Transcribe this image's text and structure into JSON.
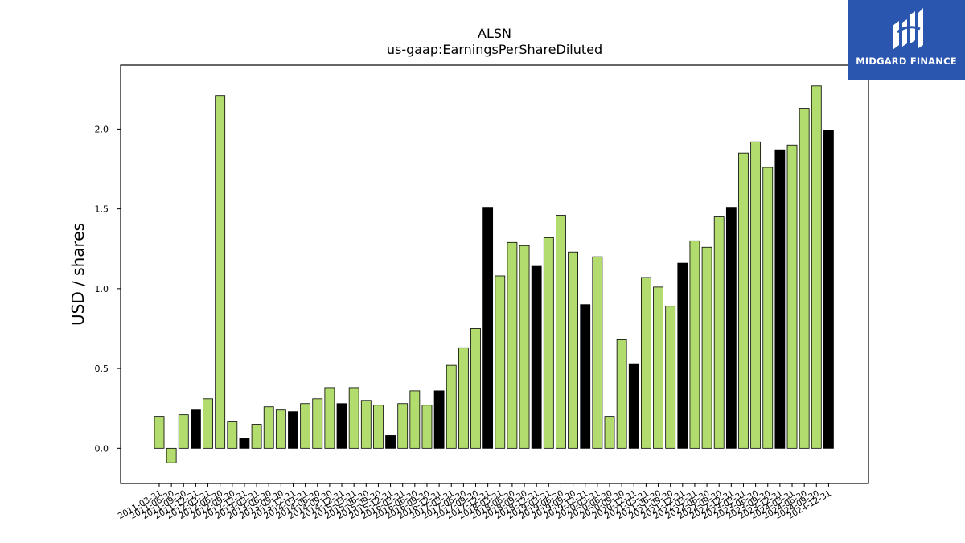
{
  "chart_data": {
    "type": "bar",
    "title": "ALSN",
    "subtitle": "us-gaap:EarningsPerShareDiluted",
    "xlabel": "",
    "ylabel": "USD / shares",
    "ylim": [
      -0.22,
      2.4
    ],
    "yticks": [
      0.0,
      0.5,
      1.0,
      1.5,
      2.0
    ],
    "grid": false,
    "colors": {
      "quarter": "#b2dd6e",
      "annual": "#000000",
      "edge": "#000000"
    },
    "categories": [
      "2011-03-31",
      "2011-06-30",
      "2011-09-30",
      "2011-12-31",
      "2012-03-31",
      "2012-06-30",
      "2012-09-30",
      "2012-12-31",
      "2013-03-31",
      "2013-06-30",
      "2013-09-30",
      "2013-12-31",
      "2014-03-31",
      "2014-06-30",
      "2014-09-30",
      "2014-12-31",
      "2015-03-31",
      "2015-06-30",
      "2015-09-30",
      "2015-12-31",
      "2016-03-31",
      "2016-06-30",
      "2016-09-30",
      "2016-12-31",
      "2017-03-31",
      "2017-06-30",
      "2017-09-30",
      "2017-12-31",
      "2018-03-31",
      "2018-06-30",
      "2018-09-30",
      "2018-12-31",
      "2019-03-31",
      "2019-06-30",
      "2019-09-30",
      "2019-12-31",
      "2020-03-31",
      "2020-06-30",
      "2020-09-30",
      "2020-12-31",
      "2021-03-31",
      "2021-06-30",
      "2021-09-30",
      "2021-12-31",
      "2022-03-31",
      "2022-06-30",
      "2022-09-30",
      "2022-12-31",
      "2023-03-31",
      "2023-06-30",
      "2023-09-30",
      "2023-12-31",
      "2024-03-31",
      "2024-06-30",
      "2024-09-30",
      "2024-12-31"
    ],
    "values": [
      0.2,
      -0.09,
      0.21,
      0.24,
      0.31,
      2.21,
      0.17,
      0.06,
      0.15,
      0.26,
      0.24,
      0.23,
      0.28,
      0.31,
      0.38,
      0.28,
      0.38,
      0.3,
      0.27,
      0.08,
      0.28,
      0.36,
      0.27,
      0.36,
      0.52,
      0.63,
      0.75,
      1.51,
      1.08,
      1.29,
      1.27,
      1.14,
      1.32,
      1.46,
      1.23,
      0.9,
      1.2,
      0.2,
      0.68,
      0.53,
      1.07,
      1.01,
      0.89,
      1.16,
      1.3,
      1.26,
      1.45,
      1.51,
      1.85,
      1.92,
      1.76,
      1.87,
      1.9,
      2.13,
      2.27,
      1.99
    ],
    "annual": [
      false,
      false,
      false,
      true,
      false,
      false,
      false,
      true,
      false,
      false,
      false,
      true,
      false,
      false,
      false,
      true,
      false,
      false,
      false,
      true,
      false,
      false,
      false,
      true,
      false,
      false,
      false,
      true,
      false,
      false,
      false,
      true,
      false,
      false,
      false,
      true,
      false,
      false,
      false,
      true,
      false,
      false,
      false,
      true,
      false,
      false,
      false,
      true,
      false,
      false,
      false,
      true,
      false,
      false,
      false,
      true
    ]
  },
  "logo": {
    "text": "MIDGARD FINANCE"
  }
}
